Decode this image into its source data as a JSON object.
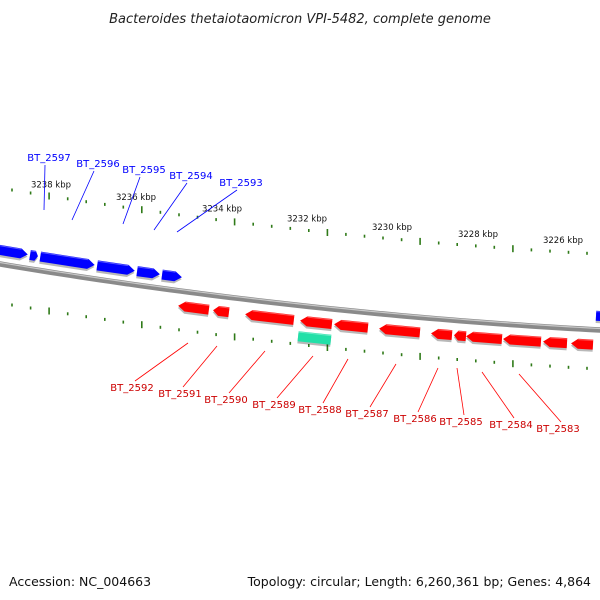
{
  "title": "Bacteroides thetaiotaomicron VPI-5482, complete genome",
  "accession": "Accession: NC_004663",
  "summary": "Topology: circular; Length: 6,260,361 bp; Genes: 4,864",
  "colors": {
    "forward": "#0000ff",
    "reverse": "#ff0000",
    "rna": "#22e0a8",
    "backbone": "#8a8a8a",
    "tick": "#2f7a18"
  },
  "ticks": {
    "outer_labels": [
      "3238 kbp",
      "3236 kbp",
      "3234 kbp",
      "3232 kbp",
      "3230 kbp",
      "3228 kbp",
      "3226 kbp"
    ]
  },
  "forward_genes": [
    {
      "label": "BT_2597"
    },
    {
      "label": "BT_2596"
    },
    {
      "label": "BT_2595"
    },
    {
      "label": "BT_2594"
    },
    {
      "label": "BT_2593"
    }
  ],
  "reverse_genes": [
    {
      "label": "BT_2592"
    },
    {
      "label": "BT_2591"
    },
    {
      "label": "BT_2590"
    },
    {
      "label": "BT_2589"
    },
    {
      "label": "BT_2588"
    },
    {
      "label": "BT_2587"
    },
    {
      "label": "BT_2586"
    },
    {
      "label": "BT_2585"
    },
    {
      "label": "BT_2584"
    },
    {
      "label": "BT_2583"
    }
  ]
}
